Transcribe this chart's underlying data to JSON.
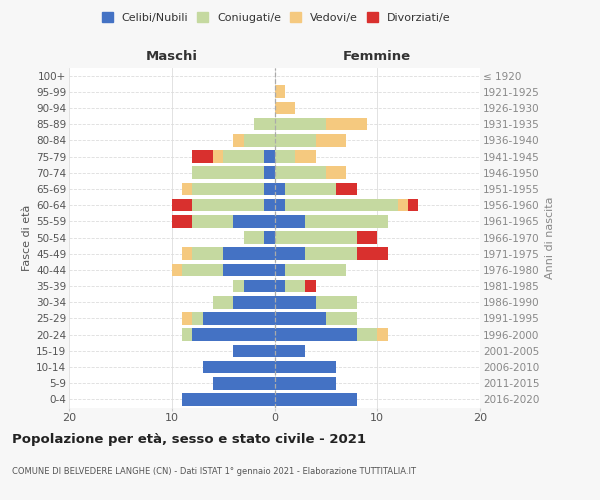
{
  "age_groups": [
    "0-4",
    "5-9",
    "10-14",
    "15-19",
    "20-24",
    "25-29",
    "30-34",
    "35-39",
    "40-44",
    "45-49",
    "50-54",
    "55-59",
    "60-64",
    "65-69",
    "70-74",
    "75-79",
    "80-84",
    "85-89",
    "90-94",
    "95-99",
    "100+"
  ],
  "birth_years": [
    "2016-2020",
    "2011-2015",
    "2006-2010",
    "2001-2005",
    "1996-2000",
    "1991-1995",
    "1986-1990",
    "1981-1985",
    "1976-1980",
    "1971-1975",
    "1966-1970",
    "1961-1965",
    "1956-1960",
    "1951-1955",
    "1946-1950",
    "1941-1945",
    "1936-1940",
    "1931-1935",
    "1926-1930",
    "1921-1925",
    "≤ 1920"
  ],
  "colors": {
    "celibi": "#4472c4",
    "coniugati": "#c5d9a0",
    "vedovi": "#f5c97f",
    "divorziati": "#d9302e"
  },
  "maschi": {
    "celibi": [
      9,
      6,
      7,
      4,
      8,
      7,
      4,
      3,
      5,
      5,
      1,
      4,
      1,
      1,
      1,
      1,
      0,
      0,
      0,
      0,
      0
    ],
    "coniugati": [
      0,
      0,
      0,
      0,
      1,
      1,
      2,
      1,
      4,
      3,
      2,
      4,
      7,
      7,
      7,
      4,
      3,
      2,
      0,
      0,
      0
    ],
    "vedovi": [
      0,
      0,
      0,
      0,
      0,
      1,
      0,
      0,
      1,
      1,
      0,
      0,
      0,
      1,
      0,
      1,
      1,
      0,
      0,
      0,
      0
    ],
    "divorziati": [
      0,
      0,
      0,
      0,
      0,
      0,
      0,
      0,
      0,
      0,
      0,
      2,
      2,
      0,
      0,
      2,
      0,
      0,
      0,
      0,
      0
    ]
  },
  "femmine": {
    "celibi": [
      8,
      6,
      6,
      3,
      8,
      5,
      4,
      1,
      1,
      3,
      0,
      3,
      1,
      1,
      0,
      0,
      0,
      0,
      0,
      0,
      0
    ],
    "coniugati": [
      0,
      0,
      0,
      0,
      2,
      3,
      4,
      2,
      6,
      5,
      8,
      8,
      11,
      5,
      5,
      2,
      4,
      5,
      0,
      0,
      0
    ],
    "vedovi": [
      0,
      0,
      0,
      0,
      1,
      0,
      0,
      0,
      0,
      0,
      0,
      0,
      1,
      0,
      2,
      2,
      3,
      4,
      2,
      1,
      0
    ],
    "divorziati": [
      0,
      0,
      0,
      0,
      0,
      0,
      0,
      1,
      0,
      3,
      2,
      0,
      1,
      2,
      0,
      0,
      0,
      0,
      0,
      0,
      0
    ]
  },
  "xlim": 20,
  "title": "Popolazione per età, sesso e stato civile - 2021",
  "subtitle": "COMUNE DI BELVEDERE LANGHE (CN) - Dati ISTAT 1° gennaio 2021 - Elaborazione TUTTITALIA.IT",
  "ylabel_left": "Fasce di età",
  "ylabel_right": "Anni di nascita",
  "xlabel_maschi": "Maschi",
  "xlabel_femmine": "Femmine",
  "legend_labels": [
    "Celibi/Nubili",
    "Coniugati/e",
    "Vedovi/e",
    "Divorziati/e"
  ],
  "bg_color": "#f7f7f7",
  "plot_bg_color": "#ffffff"
}
